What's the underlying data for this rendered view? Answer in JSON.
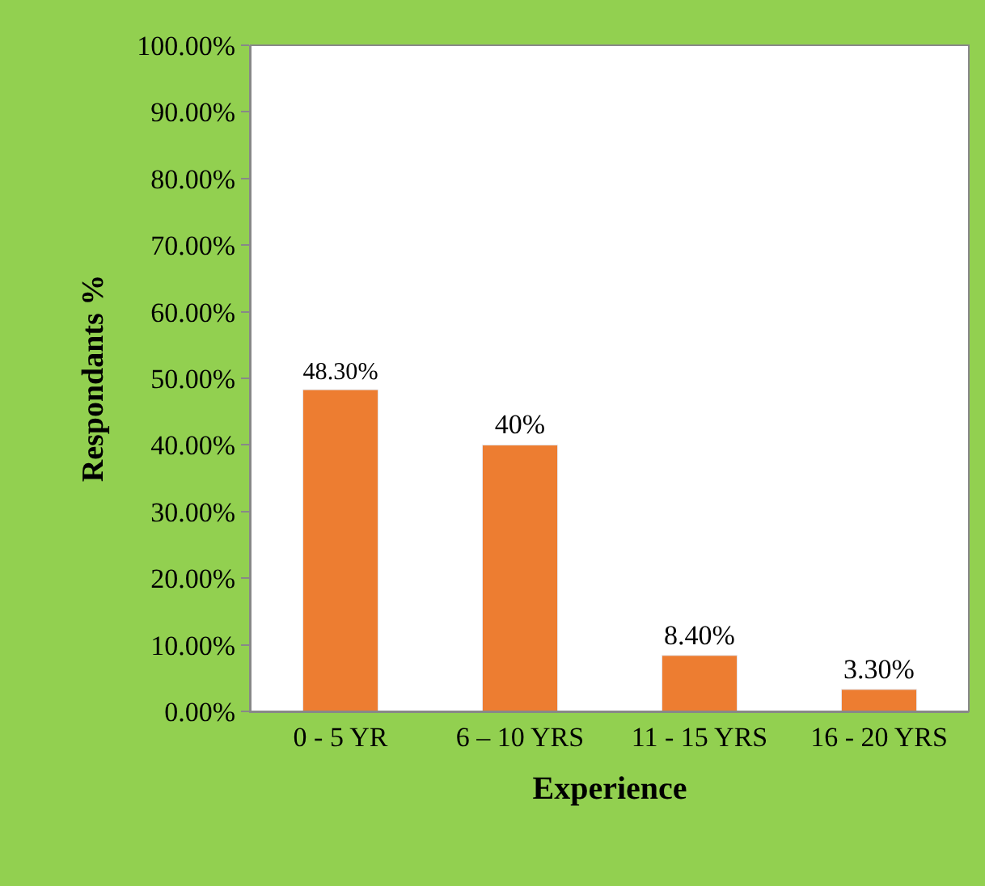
{
  "chart_data": {
    "type": "bar",
    "xlabel": "Experience",
    "ylabel": "Respondants %",
    "categories": [
      "0 - 5 YR",
      "6 – 10 YRS",
      "11 - 15 YRS",
      "16 - 20 YRS"
    ],
    "values": [
      48.3,
      40,
      8.4,
      3.3
    ],
    "color": "#ed7d31",
    "value_labels": [
      "48.30%",
      "40%",
      "8.40%",
      "3.30%"
    ],
    "ylim": [
      0,
      100
    ],
    "yticks": [
      {
        "value": 0,
        "label": "0.00%"
      },
      {
        "value": 10,
        "label": "10.00%"
      },
      {
        "value": 20,
        "label": "20.00%"
      },
      {
        "value": 30,
        "label": "30.00%"
      },
      {
        "value": 40,
        "label": "40.00%"
      },
      {
        "value": 50,
        "label": "50.00%"
      },
      {
        "value": 60,
        "label": "60.00%"
      },
      {
        "value": 70,
        "label": "70.00%"
      },
      {
        "value": 80,
        "label": "80.00%"
      },
      {
        "value": 90,
        "label": "90.00%"
      },
      {
        "value": 100,
        "label": "100.00%"
      }
    ],
    "legend": false
  }
}
